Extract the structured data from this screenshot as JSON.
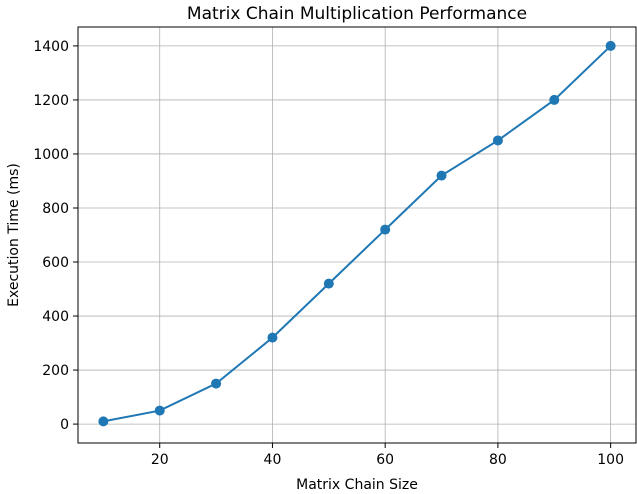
{
  "chart_data": {
    "type": "line",
    "title": "Matrix Chain Multiplication Performance",
    "xlabel": "Matrix Chain Size",
    "ylabel": "Execution Time (ms)",
    "xlim": [
      5.5,
      104.5
    ],
    "ylim": [
      -70,
      1470
    ],
    "xticks": [
      20,
      40,
      60,
      80,
      100
    ],
    "yticks": [
      0,
      200,
      400,
      600,
      800,
      1000,
      1200,
      1400
    ],
    "grid": true,
    "series": [
      {
        "x": [
          10,
          20,
          30,
          40,
          50,
          60,
          70,
          80,
          90,
          100
        ],
        "values": [
          10,
          50,
          150,
          320,
          520,
          720,
          920,
          1050,
          1200,
          1400
        ],
        "color": "#1f77b4",
        "marker": "circle"
      }
    ]
  }
}
